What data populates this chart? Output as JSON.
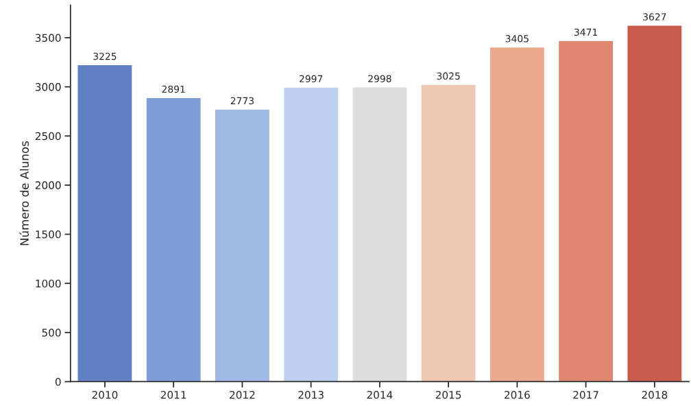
{
  "chart_data": {
    "type": "bar",
    "ylabel": "Número de Alunos",
    "categories": [
      "2010",
      "2011",
      "2012",
      "2013",
      "2014",
      "2015",
      "2016",
      "2017",
      "2018"
    ],
    "values": [
      3225,
      2891,
      2773,
      2997,
      2998,
      3025,
      3405,
      3471,
      3627
    ],
    "colors": [
      "#6480c4",
      "#7f9ed8",
      "#9fb8e4",
      "#bdd0ee",
      "#dcdcdc",
      "#efc8b4",
      "#eaa88c",
      "#de8670",
      "#c95a4c"
    ],
    "ylim": [
      0,
      3830
    ],
    "yticks": [
      0,
      500,
      1000,
      1500,
      2000,
      2500,
      3000,
      3500
    ],
    "data_labels": true,
    "grid": false,
    "legend": false
  }
}
